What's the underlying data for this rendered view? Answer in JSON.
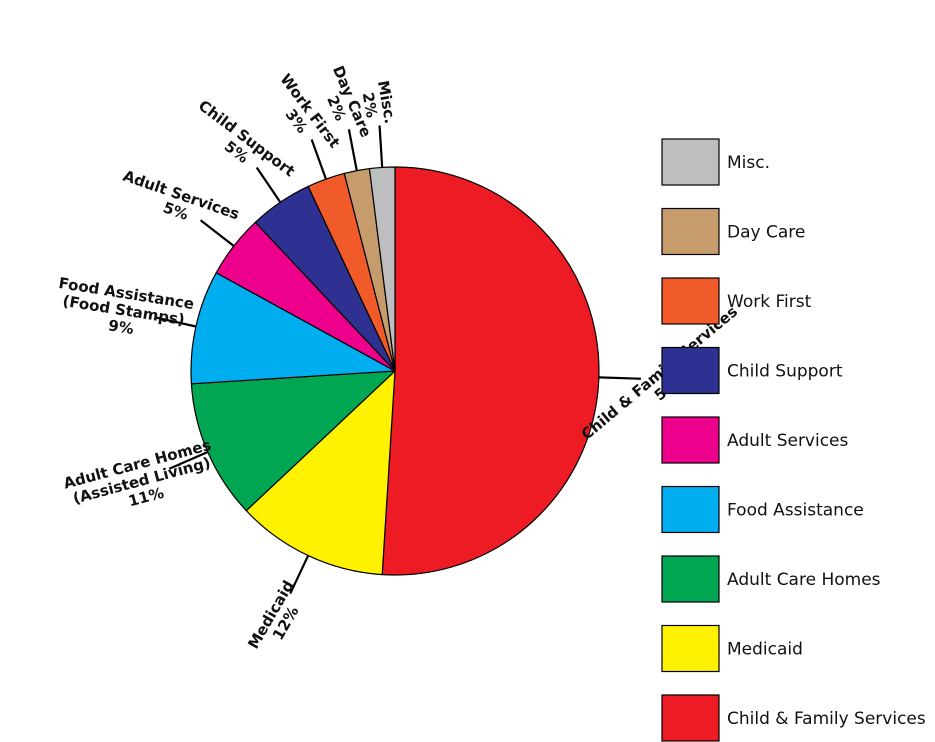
{
  "chart_data": {
    "type": "pie",
    "title": "",
    "slices": [
      {
        "name": "Child & Family Services",
        "value": 51,
        "label": "51%",
        "color": "#ED1C24"
      },
      {
        "name": "Medicaid",
        "value": 12,
        "label": "12%",
        "color": "#FFF200"
      },
      {
        "name": "Adult Care Homes",
        "value": 11,
        "label": "11%",
        "color": "#00A651"
      },
      {
        "name": "Food Assistance",
        "value": 9,
        "label": "9%",
        "color": "#00AEEF"
      },
      {
        "name": "Adult Services",
        "value": 5,
        "label": "5%",
        "color": "#EC008C"
      },
      {
        "name": "Child Support",
        "value": 5,
        "label": "5%",
        "color": "#2E3192"
      },
      {
        "name": "Work First",
        "value": 3,
        "label": "3%",
        "color": "#F15A29"
      },
      {
        "name": "Day Care",
        "value": 2,
        "label": "2%",
        "color": "#C69C6D"
      },
      {
        "name": "Misc.",
        "value": 2,
        "label": "2%",
        "color": "#BCBEC0"
      }
    ],
    "slice_labels": [
      {
        "lines": [
          "Child & Family Services",
          "51%"
        ]
      },
      {
        "lines": [
          "Medicaid",
          "12%"
        ]
      },
      {
        "lines": [
          "Adult Care Homes",
          "(Assisted Living)",
          "11%"
        ]
      },
      {
        "lines": [
          "Food Assistance",
          "(Food Stamps)",
          "9%"
        ]
      },
      {
        "lines": [
          "Adult Services",
          "5%"
        ]
      },
      {
        "lines": [
          "Child Support",
          "5%"
        ]
      },
      {
        "lines": [
          "Work First",
          "3%"
        ]
      },
      {
        "lines": [
          "Day Care",
          "2%"
        ]
      },
      {
        "lines": [
          "Misc.",
          "2%"
        ]
      }
    ],
    "legend": {
      "placement": "right",
      "entries": [
        {
          "label": "Misc.",
          "color": "#BCBEC0"
        },
        {
          "label": "Day Care",
          "color": "#C69C6D"
        },
        {
          "label": "Work First",
          "color": "#F15A29"
        },
        {
          "label": "Child Support",
          "color": "#2E3192"
        },
        {
          "label": "Adult Services",
          "color": "#EC008C"
        },
        {
          "label": "Food Assistance",
          "color": "#00AEEF"
        },
        {
          "label": "Adult Care Homes",
          "color": "#00A651"
        },
        {
          "label": "Medicaid",
          "color": "#FFF200"
        },
        {
          "label": "Child & Family Services",
          "color": "#ED1C24"
        }
      ]
    }
  }
}
